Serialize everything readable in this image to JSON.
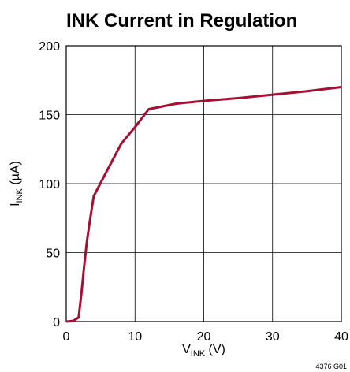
{
  "chart_data": {
    "type": "line",
    "title": "INK Current in Regulation",
    "xlabel": {
      "main": "V",
      "sub": "INK",
      "unit": " (V)"
    },
    "ylabel": {
      "main": "I",
      "sub": "INK",
      "unit": " (µA)"
    },
    "xlim": [
      0,
      40
    ],
    "ylim": [
      0,
      200
    ],
    "x_ticks": [
      0,
      10,
      20,
      30,
      40
    ],
    "y_ticks": [
      0,
      50,
      100,
      150,
      200
    ],
    "grid": true,
    "series": [
      {
        "color": "#a50f34",
        "points": [
          [
            0,
            0
          ],
          [
            1,
            0.5
          ],
          [
            1.8,
            3
          ],
          [
            2.2,
            20
          ],
          [
            2.6,
            40
          ],
          [
            3,
            58
          ],
          [
            3.5,
            75
          ],
          [
            4,
            91
          ],
          [
            6,
            110
          ],
          [
            8,
            129
          ],
          [
            10,
            141
          ],
          [
            12,
            154
          ],
          [
            16,
            158
          ],
          [
            20,
            160
          ],
          [
            25,
            162
          ],
          [
            30,
            164.5
          ],
          [
            35,
            167
          ],
          [
            40,
            170
          ]
        ]
      }
    ],
    "figure_code": "4376 G01"
  }
}
